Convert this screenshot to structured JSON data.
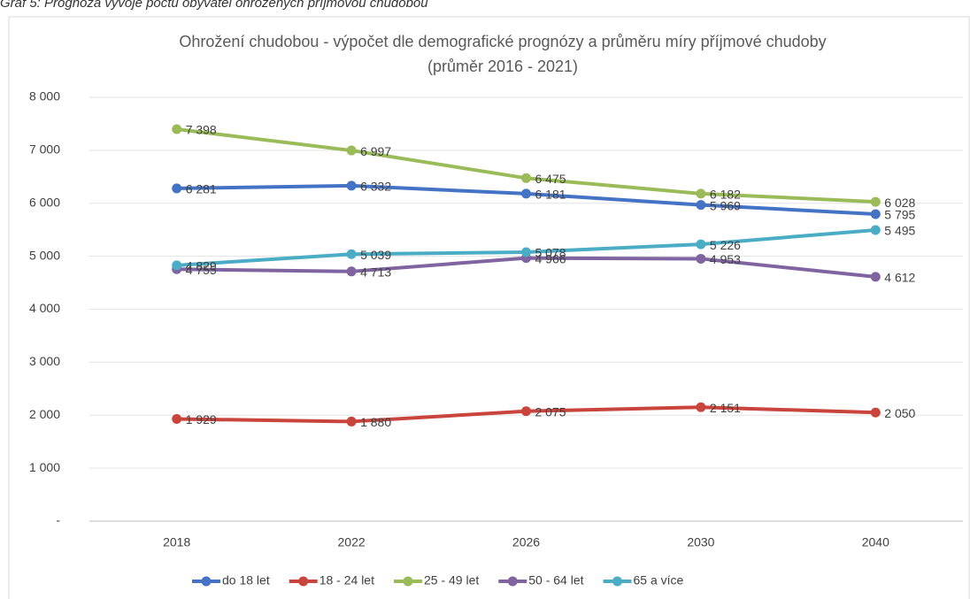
{
  "caption": "Graf 5: Prognóza vývoje počtu obyvatel ohrožených příjmovou chudobou",
  "chart_data": {
    "type": "line",
    "title": "Ohrožení chudobou - výpočet dle demografické prognózy a průměru míry příjmové chudoby",
    "subtitle": "(průměr 2016 - 2021)",
    "categories": [
      "2018",
      "2022",
      "2026",
      "2030",
      "2040"
    ],
    "series": [
      {
        "name": "do 18 let",
        "color": "#4472c4",
        "values": [
          6281,
          6332,
          6181,
          5969,
          5795
        ],
        "value_labels": [
          "6 281",
          "6 332",
          "6 181",
          "5 969",
          "5 795"
        ]
      },
      {
        "name": "18 - 24 let",
        "color": "#c9443c",
        "values": [
          1929,
          1880,
          2075,
          2151,
          2050
        ],
        "value_labels": [
          "1 929",
          "1 880",
          "2 075",
          "2 151",
          "2 050"
        ]
      },
      {
        "name": "25 - 49 let",
        "color": "#9bbb59",
        "values": [
          7398,
          6997,
          6475,
          6182,
          6028
        ],
        "value_labels": [
          "7 398",
          "6 997",
          "6 475",
          "6 182",
          "6 028"
        ]
      },
      {
        "name": "50 - 64 let",
        "color": "#8064a2",
        "values": [
          4755,
          4713,
          4966,
          4953,
          4612
        ],
        "value_labels": [
          "4 755",
          "4 713",
          "4 966",
          "4 953",
          "4 612"
        ]
      },
      {
        "name": "65 a více",
        "color": "#4bacc6",
        "values": [
          4829,
          5039,
          5078,
          5226,
          5495
        ],
        "value_labels": [
          "4 829",
          "5 039",
          "5 078",
          "5 226",
          "5 495"
        ]
      }
    ],
    "ylim": [
      0,
      8000
    ],
    "yticks": [
      {
        "value": 0,
        "label": "-"
      },
      {
        "value": 1000,
        "label": "1 000"
      },
      {
        "value": 2000,
        "label": "2 000"
      },
      {
        "value": 3000,
        "label": "3 000"
      },
      {
        "value": 4000,
        "label": "4 000"
      },
      {
        "value": 5000,
        "label": "5 000"
      },
      {
        "value": 6000,
        "label": "6 000"
      },
      {
        "value": 7000,
        "label": "7 000"
      },
      {
        "value": 8000,
        "label": "8 000"
      }
    ],
    "grid": true,
    "legend": "bottom"
  }
}
